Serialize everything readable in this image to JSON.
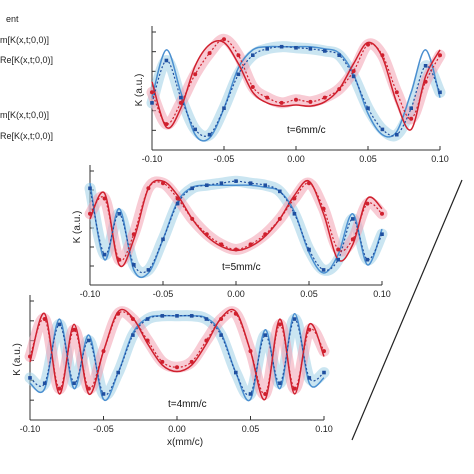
{
  "legend": {
    "lines": [
      "ent",
      "m[K(x,t;0,0)]",
      "Re[K(x,t;0,0)]",
      "m[K(x,t;0,0)]",
      "Re[K(x,t;0,0)]"
    ]
  },
  "colors": {
    "re": "#d0202e",
    "re_band": "#f2a0b0",
    "im": "#1f4fa0",
    "im_line": "#4a8fd0",
    "im_band": "#9ecfe6",
    "axis": "#333333"
  },
  "chart_data": [
    {
      "type": "line",
      "annotation": "t=6mm/c",
      "ylabel": "K (a.u.)",
      "xlabel": "",
      "xlim": [
        -0.1,
        0.1
      ],
      "xticks": [
        "-0.10",
        "-0.05",
        "0.00",
        "0.05",
        "0.10"
      ],
      "series": [
        {
          "kind": "re_exp",
          "x": [
            -0.1,
            -0.09,
            -0.08,
            -0.07,
            -0.06,
            -0.05,
            -0.04,
            -0.03,
            -0.02,
            -0.01,
            0.0,
            0.01,
            0.02,
            0.03,
            0.04,
            0.05,
            0.06,
            0.07,
            0.08,
            0.09,
            0.1
          ],
          "values": [
            0.45,
            0.15,
            0.35,
            0.62,
            0.82,
            0.95,
            0.8,
            0.5,
            0.4,
            0.35,
            0.38,
            0.36,
            0.4,
            0.48,
            0.65,
            0.9,
            0.8,
            0.45,
            0.2,
            0.55,
            0.8
          ]
        },
        {
          "kind": "re_theory",
          "x": [
            -0.1,
            -0.09,
            -0.08,
            -0.07,
            -0.06,
            -0.05,
            -0.04,
            -0.03,
            -0.02,
            -0.01,
            0.0,
            0.01,
            0.02,
            0.03,
            0.04,
            0.05,
            0.06,
            0.07,
            0.08,
            0.09,
            0.1
          ],
          "values": [
            0.55,
            0.12,
            0.3,
            0.7,
            0.9,
            0.92,
            0.72,
            0.45,
            0.35,
            0.32,
            0.33,
            0.32,
            0.36,
            0.48,
            0.72,
            0.92,
            0.78,
            0.35,
            0.1,
            0.6,
            0.85
          ]
        },
        {
          "kind": "im_exp",
          "x": [
            -0.1,
            -0.09,
            -0.08,
            -0.07,
            -0.06,
            -0.05,
            -0.04,
            -0.03,
            -0.02,
            -0.01,
            0.0,
            0.01,
            0.02,
            0.03,
            0.04,
            0.05,
            0.06,
            0.07,
            0.08,
            0.09,
            0.1
          ],
          "values": [
            0.35,
            0.75,
            0.4,
            0.1,
            0.05,
            0.3,
            0.62,
            0.8,
            0.86,
            0.88,
            0.87,
            0.86,
            0.84,
            0.8,
            0.6,
            0.3,
            0.1,
            0.05,
            0.3,
            0.7,
            0.45
          ]
        },
        {
          "kind": "im_theory",
          "x": [
            -0.1,
            -0.09,
            -0.08,
            -0.07,
            -0.06,
            -0.05,
            -0.04,
            -0.03,
            -0.02,
            -0.01,
            0.0,
            0.01,
            0.02,
            0.03,
            0.04,
            0.05,
            0.06,
            0.07,
            0.08,
            0.09,
            0.1
          ],
          "values": [
            0.4,
            0.85,
            0.45,
            0.05,
            0.02,
            0.3,
            0.68,
            0.85,
            0.88,
            0.88,
            0.88,
            0.88,
            0.86,
            0.82,
            0.62,
            0.25,
            0.05,
            0.08,
            0.45,
            0.85,
            0.4
          ]
        }
      ]
    },
    {
      "type": "line",
      "annotation": "t=5mm/c",
      "ylabel": "K (a.u.)",
      "xlabel": "",
      "xlim": [
        -0.1,
        0.1
      ],
      "xticks": [
        "-0.10",
        "-0.05",
        "0.00",
        "0.05",
        "0.10"
      ],
      "series": [
        {
          "kind": "re_exp",
          "x": [
            -0.1,
            -0.09,
            -0.08,
            -0.07,
            -0.06,
            -0.05,
            -0.04,
            -0.03,
            -0.02,
            -0.01,
            0.0,
            0.01,
            0.02,
            0.03,
            0.04,
            0.05,
            0.06,
            0.07,
            0.08,
            0.09,
            0.1
          ],
          "values": [
            0.6,
            0.75,
            0.15,
            0.4,
            0.85,
            0.9,
            0.75,
            0.55,
            0.4,
            0.3,
            0.25,
            0.3,
            0.4,
            0.55,
            0.75,
            0.9,
            0.65,
            0.25,
            0.35,
            0.7,
            0.6
          ]
        },
        {
          "kind": "re_theory",
          "x": [
            -0.1,
            -0.09,
            -0.08,
            -0.07,
            -0.06,
            -0.05,
            -0.04,
            -0.03,
            -0.02,
            -0.01,
            0.0,
            0.01,
            0.02,
            0.03,
            0.04,
            0.05,
            0.06,
            0.07,
            0.08,
            0.09,
            0.1
          ],
          "values": [
            0.55,
            0.8,
            0.1,
            0.35,
            0.85,
            0.92,
            0.78,
            0.55,
            0.38,
            0.28,
            0.24,
            0.28,
            0.38,
            0.55,
            0.78,
            0.92,
            0.6,
            0.15,
            0.3,
            0.75,
            0.65
          ]
        },
        {
          "kind": "im_exp",
          "x": [
            -0.1,
            -0.09,
            -0.08,
            -0.07,
            -0.06,
            -0.05,
            -0.04,
            -0.03,
            -0.02,
            -0.01,
            0.0,
            0.01,
            0.02,
            0.03,
            0.04,
            0.05,
            0.06,
            0.07,
            0.08,
            0.09,
            0.1
          ],
          "values": [
            0.85,
            0.2,
            0.6,
            0.1,
            0.05,
            0.35,
            0.7,
            0.85,
            0.88,
            0.9,
            0.92,
            0.9,
            0.88,
            0.82,
            0.6,
            0.25,
            0.05,
            0.15,
            0.55,
            0.15,
            0.4
          ]
        },
        {
          "kind": "im_theory",
          "x": [
            -0.1,
            -0.09,
            -0.08,
            -0.07,
            -0.06,
            -0.05,
            -0.04,
            -0.03,
            -0.02,
            -0.01,
            0.0,
            0.01,
            0.02,
            0.03,
            0.04,
            0.05,
            0.06,
            0.07,
            0.08,
            0.09,
            0.1
          ],
          "values": [
            0.9,
            0.15,
            0.65,
            0.05,
            0.02,
            0.35,
            0.72,
            0.86,
            0.88,
            0.88,
            0.88,
            0.88,
            0.86,
            0.82,
            0.62,
            0.22,
            0.02,
            0.2,
            0.6,
            0.1,
            0.45
          ]
        }
      ]
    },
    {
      "type": "line",
      "annotation": "t=4mm/c",
      "ylabel": "K (a.u.)",
      "xlabel": "x(mm/c)",
      "xlim": [
        -0.1,
        0.1
      ],
      "xticks": [
        "-0.10",
        "-0.05",
        "0.00",
        "0.05",
        "0.10"
      ],
      "series": [
        {
          "kind": "re_exp",
          "x": [
            -0.1,
            -0.09,
            -0.08,
            -0.07,
            -0.06,
            -0.05,
            -0.04,
            -0.03,
            -0.02,
            -0.01,
            0.0,
            0.01,
            0.02,
            0.03,
            0.04,
            0.05,
            0.06,
            0.07,
            0.08,
            0.09,
            0.1
          ],
          "values": [
            0.5,
            0.85,
            0.2,
            0.75,
            0.2,
            0.55,
            0.9,
            0.85,
            0.65,
            0.45,
            0.4,
            0.45,
            0.65,
            0.85,
            0.9,
            0.55,
            0.15,
            0.8,
            0.2,
            0.75,
            0.55
          ]
        },
        {
          "kind": "re_theory",
          "x": [
            -0.1,
            -0.09,
            -0.08,
            -0.07,
            -0.06,
            -0.05,
            -0.04,
            -0.03,
            -0.02,
            -0.01,
            0.0,
            0.01,
            0.02,
            0.03,
            0.04,
            0.05,
            0.06,
            0.07,
            0.08,
            0.09,
            0.1
          ],
          "values": [
            0.45,
            0.9,
            0.15,
            0.8,
            0.15,
            0.55,
            0.92,
            0.86,
            0.62,
            0.42,
            0.36,
            0.42,
            0.62,
            0.86,
            0.92,
            0.55,
            0.1,
            0.85,
            0.15,
            0.8,
            0.5
          ]
        },
        {
          "kind": "im_exp",
          "x": [
            -0.1,
            -0.09,
            -0.08,
            -0.07,
            -0.06,
            -0.05,
            -0.04,
            -0.03,
            -0.02,
            -0.01,
            0.0,
            0.01,
            0.02,
            0.03,
            0.04,
            0.05,
            0.06,
            0.07,
            0.08,
            0.09,
            0.1
          ],
          "values": [
            0.3,
            0.25,
            0.8,
            0.25,
            0.65,
            0.15,
            0.35,
            0.7,
            0.85,
            0.88,
            0.88,
            0.88,
            0.85,
            0.7,
            0.35,
            0.15,
            0.7,
            0.25,
            0.85,
            0.3,
            0.35
          ]
        },
        {
          "kind": "im_theory",
          "x": [
            -0.1,
            -0.09,
            -0.08,
            -0.07,
            -0.06,
            -0.05,
            -0.04,
            -0.03,
            -0.02,
            -0.01,
            0.0,
            0.01,
            0.02,
            0.03,
            0.04,
            0.05,
            0.06,
            0.07,
            0.08,
            0.09,
            0.1
          ],
          "values": [
            0.25,
            0.2,
            0.85,
            0.2,
            0.7,
            0.1,
            0.35,
            0.72,
            0.86,
            0.88,
            0.88,
            0.88,
            0.86,
            0.72,
            0.35,
            0.1,
            0.75,
            0.2,
            0.9,
            0.25,
            0.3
          ]
        }
      ]
    }
  ]
}
